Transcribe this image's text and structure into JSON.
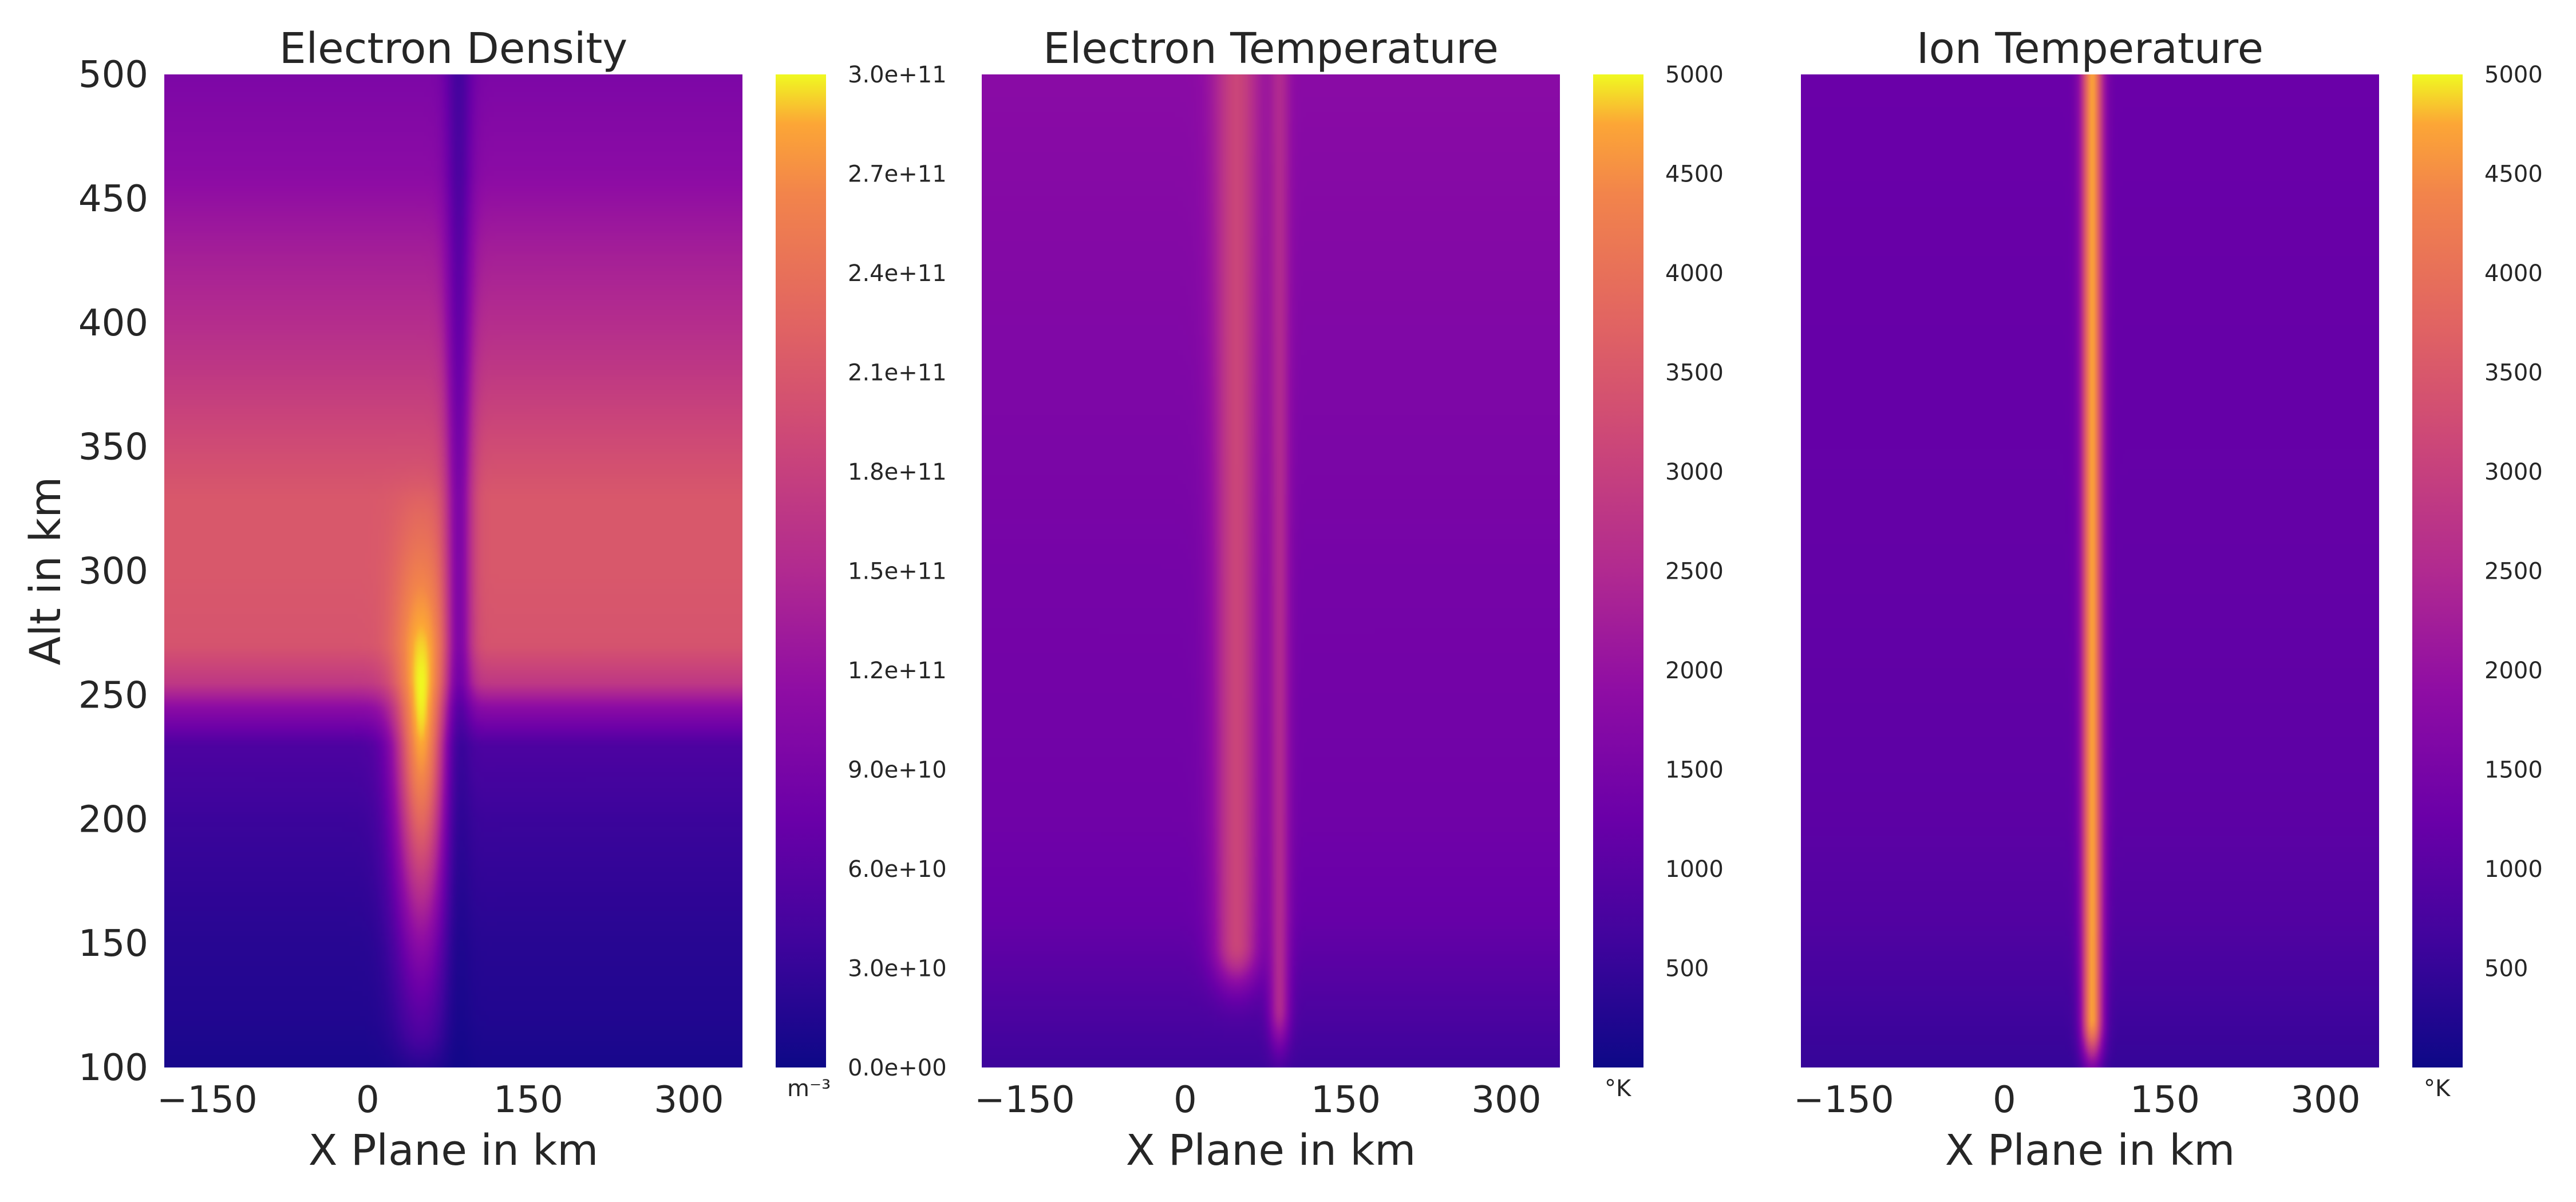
{
  "chart_data": [
    {
      "type": "heatmap",
      "title": "Electron Density",
      "xlabel": "X Plane in km",
      "ylabel": "Alt in km",
      "xlim": [
        -190,
        350
      ],
      "ylim": [
        100,
        500
      ],
      "xticks": [
        -150,
        0,
        150,
        300
      ],
      "xtick_labels": [
        "−150",
        "0",
        "150",
        "300"
      ],
      "yticks": [
        100,
        150,
        200,
        250,
        300,
        350,
        400,
        450,
        500
      ],
      "ytick_labels": [
        "100",
        "150",
        "200",
        "250",
        "300",
        "350",
        "400",
        "450",
        "500"
      ],
      "colormap": "plasma",
      "colorbar": {
        "min": 0,
        "max": 300000000000,
        "ticks": [
          0,
          30000000000,
          60000000000,
          90000000000,
          120000000000,
          150000000000,
          180000000000,
          210000000000,
          240000000000,
          270000000000,
          300000000000
        ],
        "tick_labels": [
          "0.0e+00",
          "3.0e+10",
          "6.0e+10",
          "9.0e+10",
          "1.2e+11",
          "1.5e+11",
          "1.8e+11",
          "2.1e+11",
          "2.4e+11",
          "2.7e+11",
          "3.0e+11"
        ],
        "unit": "m⁻³"
      },
      "background_profile": {
        "alt_km": [
          100,
          120,
          150,
          200,
          230,
          245,
          255,
          270,
          300,
          330,
          350,
          380,
          400,
          430,
          460,
          500
        ],
        "value": [
          8000000000,
          15000000000,
          20000000000,
          35000000000,
          50000000000,
          110000000000,
          170000000000,
          205000000000,
          210000000000,
          210000000000,
          195000000000,
          170000000000,
          155000000000,
          135000000000,
          110000000000,
          95000000000
        ]
      },
      "features": [
        {
          "kind": "enhancement",
          "x_center_km": 50,
          "x_width_km": 35,
          "alt_peak_km": 255,
          "alt_range_km": [
            115,
            320
          ],
          "peak_value": 300000000000
        },
        {
          "kind": "depletion",
          "x_center_km": 85,
          "x_width_km": 18,
          "alt_range_km": [
            100,
            500
          ],
          "factor": 0.45
        }
      ]
    },
    {
      "type": "heatmap",
      "title": "Electron Temperature",
      "xlabel": "X Plane in km",
      "ylabel": "",
      "xlim": [
        -190,
        350
      ],
      "ylim": [
        100,
        500
      ],
      "xticks": [
        -150,
        0,
        150,
        300
      ],
      "xtick_labels": [
        "−150",
        "0",
        "150",
        "300"
      ],
      "colormap": "plasma",
      "colorbar": {
        "min": 0,
        "max": 5000,
        "ticks": [
          500,
          1000,
          1500,
          2000,
          2500,
          3000,
          3500,
          4000,
          4500,
          5000
        ],
        "tick_labels": [
          "500",
          "1000",
          "1500",
          "2000",
          "2500",
          "3000",
          "3500",
          "4000",
          "4500",
          "5000"
        ],
        "unit": "°K"
      },
      "background_profile": {
        "alt_km": [
          100,
          130,
          160,
          200,
          300,
          400,
          500
        ],
        "value": [
          600,
          900,
          1200,
          1350,
          1450,
          1650,
          1800
        ]
      },
      "features": [
        {
          "kind": "enhancement",
          "x_center_km": 48,
          "x_width_km": 30,
          "alt_range_km": [
            150,
            500
          ],
          "peak_value": 3100
        },
        {
          "kind": "enhancement",
          "x_center_km": 88,
          "x_width_km": 14,
          "alt_range_km": [
            125,
            500
          ],
          "peak_value": 2500
        }
      ]
    },
    {
      "type": "heatmap",
      "title": "Ion Temperature",
      "xlabel": "X Plane in km",
      "ylabel": "",
      "xlim": [
        -190,
        350
      ],
      "ylim": [
        100,
        500
      ],
      "xticks": [
        -150,
        0,
        150,
        300
      ],
      "xtick_labels": [
        "−150",
        "0",
        "150",
        "300"
      ],
      "colormap": "plasma",
      "colorbar": {
        "min": 0,
        "max": 5000,
        "ticks": [
          500,
          1000,
          1500,
          2000,
          2500,
          3000,
          3500,
          4000,
          4500,
          5000
        ],
        "tick_labels": [
          "500",
          "1000",
          "1500",
          "2000",
          "2500",
          "3000",
          "3500",
          "4000",
          "4500",
          "5000"
        ],
        "unit": "°K"
      },
      "background_profile": {
        "alt_km": [
          100,
          130,
          160,
          200,
          300,
          400,
          500
        ],
        "value": [
          500,
          700,
          900,
          1050,
          1150,
          1200,
          1250
        ]
      },
      "features": [
        {
          "kind": "enhancement",
          "x_center_km": 82,
          "x_width_km": 14,
          "alt_range_km": [
            120,
            500
          ],
          "peak_value": 4700
        }
      ]
    }
  ]
}
